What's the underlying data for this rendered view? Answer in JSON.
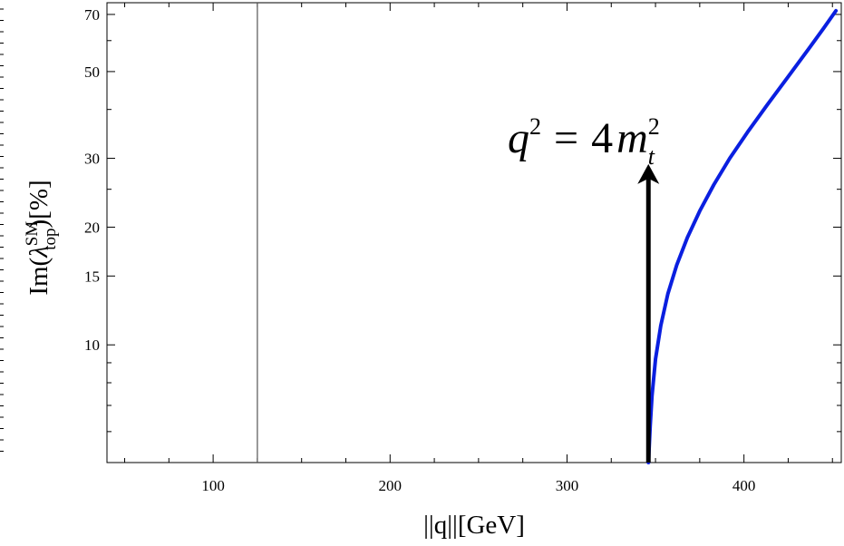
{
  "chart_data": {
    "type": "line",
    "title": "",
    "xlabel": "||q||[GeV]",
    "ylabel_parts": {
      "prefix": "Im(",
      "symbol": "λ",
      "sub": "top",
      "sup": "SM",
      "suffix": ")[%]"
    },
    "xlim": [
      40,
      455
    ],
    "ylim": [
      5,
      75
    ],
    "y_scale": "log",
    "x_ticks": [
      100,
      200,
      300,
      400
    ],
    "y_ticks": [
      10,
      15,
      20,
      30,
      50,
      70
    ],
    "grid": false,
    "series": [
      {
        "color": "#0a1fe0",
        "points": [
          [
            346,
            5.0
          ],
          [
            347,
            6.2
          ],
          [
            348,
            7.4
          ],
          [
            350,
            9.2
          ],
          [
            353,
            11.2
          ],
          [
            357,
            13.5
          ],
          [
            362,
            16.0
          ],
          [
            368,
            18.8
          ],
          [
            375,
            22.0
          ],
          [
            383,
            25.7
          ],
          [
            392,
            30.0
          ],
          [
            402,
            35.0
          ],
          [
            413,
            41.0
          ],
          [
            425,
            48.5
          ],
          [
            437,
            57.5
          ],
          [
            445,
            64.5
          ],
          [
            452,
            71.5
          ]
        ]
      }
    ],
    "vertical_line": {
      "x": 125,
      "color": "#555555"
    },
    "annotation": {
      "q_var": "q",
      "q_exp": "2",
      "equals": "=",
      "coef": "4",
      "m_var": "m",
      "m_sub": "t",
      "m_exp": "2",
      "arrow_x": 346,
      "arrow_from_y": 5.0,
      "arrow_to_y": 29.0
    }
  }
}
